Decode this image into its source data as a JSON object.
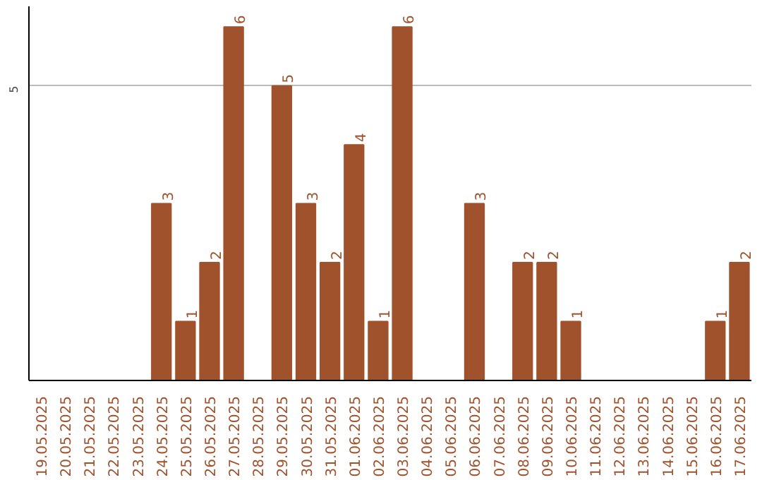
{
  "chart_data": {
    "type": "bar",
    "categories": [
      "19.05.2025",
      "20.05.2025",
      "21.05.2025",
      "22.05.2025",
      "23.05.2025",
      "24.05.2025",
      "25.05.2025",
      "26.05.2025",
      "27.05.2025",
      "28.05.2025",
      "29.05.2025",
      "30.05.2025",
      "31.05.2025",
      "01.06.2025",
      "02.06.2025",
      "03.06.2025",
      "04.06.2025",
      "05.06.2025",
      "06.06.2025",
      "07.06.2025",
      "08.06.2025",
      "09.06.2025",
      "10.06.2025",
      "11.06.2025",
      "12.06.2025",
      "13.06.2025",
      "14.06.2025",
      "15.06.2025",
      "16.06.2025",
      "17.06.2025"
    ],
    "values": [
      0,
      0,
      0,
      0,
      0,
      3,
      1,
      2,
      6,
      0,
      5,
      3,
      2,
      4,
      1,
      6,
      0,
      0,
      3,
      0,
      2,
      2,
      1,
      0,
      0,
      0,
      0,
      0,
      1,
      2
    ],
    "value_labels": [
      null,
      null,
      null,
      null,
      null,
      "3",
      "1",
      "2",
      "6",
      null,
      "5",
      "3",
      "2",
      "4",
      "1",
      "6",
      null,
      null,
      "3",
      null,
      "2",
      "2",
      "1",
      null,
      null,
      null,
      null,
      null,
      "1",
      "2"
    ],
    "color": "#a0522d",
    "ylim": [
      0,
      6.35
    ],
    "yticks": [
      5
    ],
    "grid": "y"
  }
}
